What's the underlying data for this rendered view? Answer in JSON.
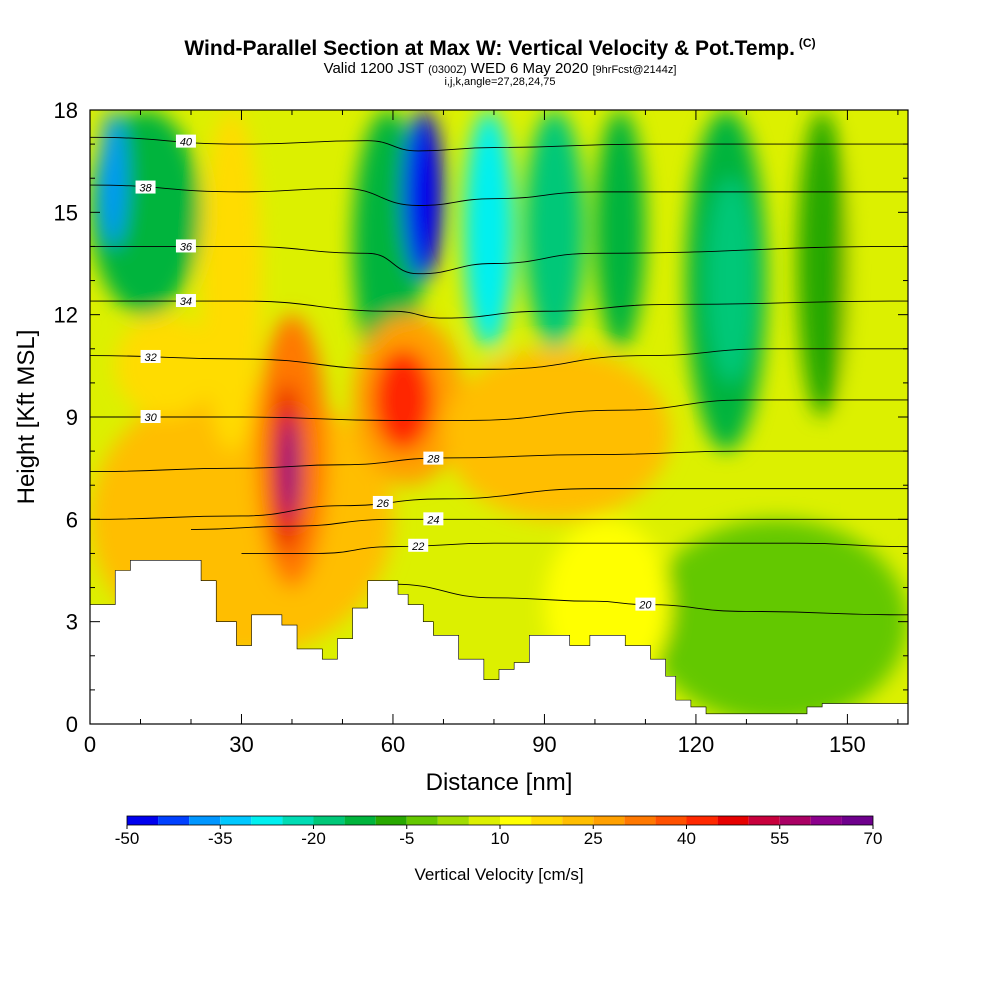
{
  "chart_data": {
    "type": "heatmap",
    "title": "Wind-Parallel Section at Max W: Vertical Velocity & Pot.Temp.",
    "title_mark": "(C)",
    "subtitle_main": "Valid 1200 JST",
    "subtitle_z": "(0300Z)",
    "subtitle_date": "WED 6 May 2020",
    "subtitle_fcst": "[9hrFcst@2144z]",
    "subtitle2": "i,j,k,angle=27,28,24,75",
    "xlabel": "Distance [nm]",
    "ylabel": "Height [Kft MSL]",
    "xlim": [
      0,
      162
    ],
    "ylim": [
      0,
      18
    ],
    "x_ticks": [
      "0",
      "30",
      "60",
      "90",
      "120",
      "150"
    ],
    "x_tick_values": [
      0,
      30,
      60,
      90,
      120,
      150
    ],
    "y_ticks": [
      "0",
      "3",
      "6",
      "9",
      "12",
      "15",
      "18"
    ],
    "y_tick_values": [
      0,
      3,
      6,
      9,
      12,
      15,
      18
    ],
    "colorbar": {
      "label": "Vertical Velocity [cm/s]",
      "tick_labels": [
        "-50",
        "-35",
        "-20",
        "-5",
        "10",
        "25",
        "40",
        "55",
        "70"
      ],
      "colors": [
        "#0000ee",
        "#0040ff",
        "#0096ff",
        "#00c8ff",
        "#00f0f0",
        "#00dcb4",
        "#00c878",
        "#00b43c",
        "#28a800",
        "#64c800",
        "#a0dc00",
        "#dcf000",
        "#ffff00",
        "#ffdc00",
        "#ffbe00",
        "#ffa000",
        "#ff7800",
        "#ff5000",
        "#ff2800",
        "#e60000",
        "#c8003c",
        "#aa0064",
        "#8c008c",
        "#6e008c"
      ]
    },
    "w_cells": [
      {
        "x": 0,
        "y": 0,
        "w": 162,
        "h": 18,
        "value": 12
      },
      {
        "x": 0,
        "y": 2,
        "w": 60,
        "h": 8,
        "value": 28
      },
      {
        "x": 5,
        "y": 9,
        "w": 20,
        "h": 3,
        "value": 22
      },
      {
        "x": 0,
        "y": 12,
        "w": 22,
        "h": 6,
        "value": -10
      },
      {
        "x": 2,
        "y": 14,
        "w": 5,
        "h": 4,
        "value": -35
      },
      {
        "x": 22,
        "y": 8,
        "w": 12,
        "h": 10,
        "value": 22
      },
      {
        "x": 33,
        "y": 4,
        "w": 14,
        "h": 8,
        "value": 35
      },
      {
        "x": 36,
        "y": 5,
        "w": 6,
        "h": 5,
        "value": 55
      },
      {
        "x": 38,
        "y": 6,
        "w": 3,
        "h": 3,
        "value": 72
      },
      {
        "x": 52,
        "y": 10,
        "w": 14,
        "h": 8,
        "value": -10
      },
      {
        "x": 62,
        "y": 13,
        "w": 8,
        "h": 5,
        "value": -45
      },
      {
        "x": 52,
        "y": 7,
        "w": 22,
        "h": 5,
        "value": 32
      },
      {
        "x": 56,
        "y": 8,
        "w": 12,
        "h": 3,
        "value": 50
      },
      {
        "x": 74,
        "y": 11,
        "w": 10,
        "h": 7,
        "value": -28
      },
      {
        "x": 86,
        "y": 11,
        "w": 12,
        "h": 7,
        "value": -18
      },
      {
        "x": 100,
        "y": 11,
        "w": 10,
        "h": 7,
        "value": -12
      },
      {
        "x": 70,
        "y": 6,
        "w": 45,
        "h": 5,
        "value": 25
      },
      {
        "x": 110,
        "y": 0,
        "w": 52,
        "h": 6,
        "value": 2
      },
      {
        "x": 118,
        "y": 8,
        "w": 16,
        "h": 10,
        "value": -8
      },
      {
        "x": 122,
        "y": 10,
        "w": 10,
        "h": 6,
        "value": -18
      },
      {
        "x": 140,
        "y": 9,
        "w": 10,
        "h": 9,
        "value": -5
      },
      {
        "x": 150,
        "y": 6,
        "w": 12,
        "h": 12,
        "value": 10
      },
      {
        "x": 90,
        "y": 1,
        "w": 25,
        "h": 5,
        "value": 16
      }
    ],
    "theta_contours": [
      {
        "label": "20",
        "label_x": 110,
        "points": [
          [
            60,
            4.1
          ],
          [
            80,
            3.7
          ],
          [
            100,
            3.6
          ],
          [
            110,
            3.5
          ],
          [
            130,
            3.3
          ],
          [
            162,
            3.2
          ]
        ]
      },
      {
        "label": "22",
        "label_x": 65,
        "points": [
          [
            30,
            5.0
          ],
          [
            45,
            5.0
          ],
          [
            60,
            5.2
          ],
          [
            80,
            5.3
          ],
          [
            110,
            5.3
          ],
          [
            140,
            5.3
          ],
          [
            162,
            5.2
          ]
        ]
      },
      {
        "label": "24",
        "label_x": 68,
        "points": [
          [
            20,
            5.7
          ],
          [
            40,
            5.8
          ],
          [
            60,
            6.0
          ],
          [
            90,
            6.0
          ],
          [
            115,
            6.0
          ],
          [
            140,
            6.0
          ],
          [
            162,
            6.0
          ]
        ]
      },
      {
        "label": "26",
        "label_x": 58,
        "points": [
          [
            0,
            6.0
          ],
          [
            30,
            6.1
          ],
          [
            50,
            6.4
          ],
          [
            70,
            6.6
          ],
          [
            100,
            6.9
          ],
          [
            130,
            6.9
          ],
          [
            162,
            6.9
          ]
        ]
      },
      {
        "label": "28",
        "label_x": 68,
        "points": [
          [
            0,
            7.4
          ],
          [
            30,
            7.5
          ],
          [
            50,
            7.6
          ],
          [
            70,
            7.8
          ],
          [
            100,
            7.9
          ],
          [
            130,
            8.0
          ],
          [
            162,
            8.0
          ]
        ]
      },
      {
        "label": "30",
        "label_x": 12,
        "points": [
          [
            0,
            9.0
          ],
          [
            30,
            9.0
          ],
          [
            60,
            8.9
          ],
          [
            75,
            8.9
          ],
          [
            105,
            9.2
          ],
          [
            130,
            9.5
          ],
          [
            162,
            9.5
          ]
        ]
      },
      {
        "label": "32",
        "label_x": 12,
        "points": [
          [
            0,
            10.8
          ],
          [
            30,
            10.7
          ],
          [
            60,
            10.4
          ],
          [
            80,
            10.4
          ],
          [
            110,
            10.8
          ],
          [
            135,
            11.0
          ],
          [
            162,
            11.0
          ]
        ]
      },
      {
        "label": "34",
        "label_x": 19,
        "points": [
          [
            0,
            12.4
          ],
          [
            30,
            12.4
          ],
          [
            60,
            12.1
          ],
          [
            70,
            11.9
          ],
          [
            90,
            12.1
          ],
          [
            115,
            12.3
          ],
          [
            162,
            12.4
          ]
        ]
      },
      {
        "label": "36",
        "label_x": 19,
        "points": [
          [
            0,
            14.0
          ],
          [
            30,
            14.0
          ],
          [
            55,
            13.8
          ],
          [
            65,
            13.2
          ],
          [
            80,
            13.5
          ],
          [
            100,
            13.8
          ],
          [
            162,
            14.0
          ]
        ]
      },
      {
        "label": "38",
        "label_x": 11,
        "points": [
          [
            0,
            15.8
          ],
          [
            30,
            15.6
          ],
          [
            50,
            15.7
          ],
          [
            65,
            15.2
          ],
          [
            80,
            15.4
          ],
          [
            100,
            15.6
          ],
          [
            162,
            15.6
          ]
        ]
      },
      {
        "label": "40",
        "label_x": 19,
        "points": [
          [
            0,
            17.2
          ],
          [
            30,
            17.0
          ],
          [
            55,
            17.1
          ],
          [
            65,
            16.8
          ],
          [
            80,
            16.9
          ],
          [
            110,
            17.0
          ],
          [
            162,
            17.0
          ]
        ]
      }
    ],
    "terrain": [
      [
        0,
        3.5
      ],
      [
        5,
        3.5
      ],
      [
        5,
        4.5
      ],
      [
        8,
        4.5
      ],
      [
        8,
        4.8
      ],
      [
        22,
        4.8
      ],
      [
        22,
        4.2
      ],
      [
        25,
        4.2
      ],
      [
        25,
        3.0
      ],
      [
        29,
        3.0
      ],
      [
        29,
        2.3
      ],
      [
        32,
        2.3
      ],
      [
        32,
        3.2
      ],
      [
        38,
        3.2
      ],
      [
        38,
        2.9
      ],
      [
        41,
        2.9
      ],
      [
        41,
        2.2
      ],
      [
        46,
        2.2
      ],
      [
        46,
        1.9
      ],
      [
        49,
        1.9
      ],
      [
        49,
        2.5
      ],
      [
        52,
        2.5
      ],
      [
        52,
        3.4
      ],
      [
        55,
        3.4
      ],
      [
        55,
        4.2
      ],
      [
        61,
        4.2
      ],
      [
        61,
        3.8
      ],
      [
        63,
        3.8
      ],
      [
        63,
        3.5
      ],
      [
        66,
        3.5
      ],
      [
        66,
        3.0
      ],
      [
        68,
        3.0
      ],
      [
        68,
        2.6
      ],
      [
        73,
        2.6
      ],
      [
        73,
        1.9
      ],
      [
        78,
        1.9
      ],
      [
        78,
        1.3
      ],
      [
        81,
        1.3
      ],
      [
        81,
        1.6
      ],
      [
        84,
        1.6
      ],
      [
        84,
        1.8
      ],
      [
        87,
        1.8
      ],
      [
        87,
        2.6
      ],
      [
        95,
        2.6
      ],
      [
        95,
        2.3
      ],
      [
        99,
        2.3
      ],
      [
        99,
        2.6
      ],
      [
        106,
        2.6
      ],
      [
        106,
        2.3
      ],
      [
        111,
        2.3
      ],
      [
        111,
        1.9
      ],
      [
        114,
        1.9
      ],
      [
        114,
        1.4
      ],
      [
        116,
        1.4
      ],
      [
        116,
        0.7
      ],
      [
        119,
        0.7
      ],
      [
        119,
        0.5
      ],
      [
        122,
        0.5
      ],
      [
        122,
        0.3
      ],
      [
        142,
        0.3
      ],
      [
        142,
        0.5
      ],
      [
        145,
        0.5
      ],
      [
        145,
        0.6
      ],
      [
        162,
        0.6
      ],
      [
        162,
        0
      ],
      [
        0,
        0
      ]
    ]
  }
}
